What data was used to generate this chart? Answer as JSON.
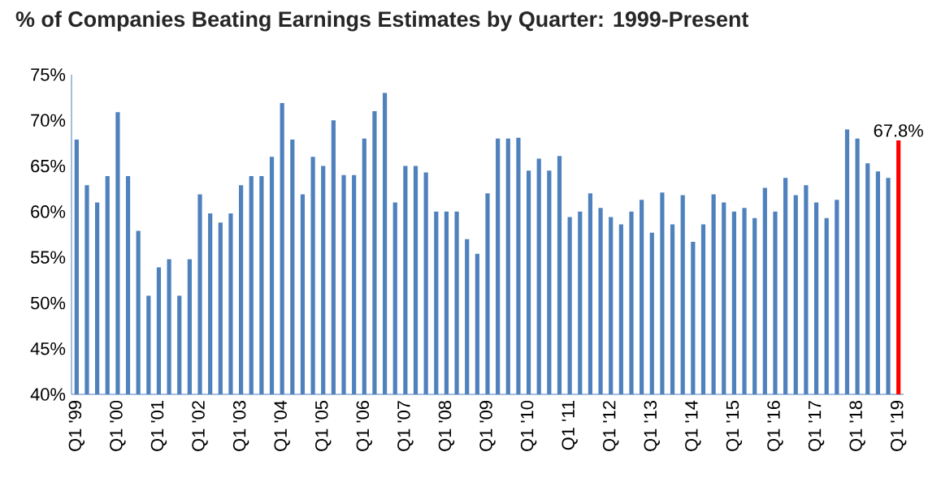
{
  "chart_data": {
    "type": "bar",
    "title": "% of Companies Beating Earnings Estimates by Quarter: 1999-Present",
    "categories": [
      "Q1 '99",
      null,
      null,
      null,
      "Q1 '00",
      null,
      null,
      null,
      "Q1 '01",
      null,
      null,
      null,
      "Q1 '02",
      null,
      null,
      null,
      "Q1 '03",
      null,
      null,
      null,
      "Q1 '04",
      null,
      null,
      null,
      "Q1 '05",
      null,
      null,
      null,
      "Q1 '06",
      null,
      null,
      null,
      "Q1 '07",
      null,
      null,
      null,
      "Q1 '08",
      null,
      null,
      null,
      "Q1 '09",
      null,
      null,
      null,
      "Q1 '10",
      null,
      null,
      null,
      "Q1 '11",
      null,
      null,
      null,
      "Q1 '12",
      null,
      null,
      null,
      "Q1 '13",
      null,
      null,
      null,
      "Q1 '14",
      null,
      null,
      null,
      "Q1 '15",
      null,
      null,
      null,
      "Q1 '16",
      null,
      null,
      null,
      "Q1 '17",
      null,
      null,
      null,
      "Q1 '18",
      null,
      null,
      null,
      "Q1 '19"
    ],
    "values": [
      67.9,
      62.9,
      61,
      63.9,
      70.9,
      63.9,
      57.9,
      50.8,
      53.9,
      54.8,
      50.8,
      54.8,
      61.9,
      59.8,
      58.8,
      59.8,
      62.9,
      63.9,
      63.9,
      66,
      71.9,
      67.9,
      61.9,
      66,
      65,
      70,
      64,
      64,
      68,
      71,
      73,
      61,
      65,
      65,
      64.3,
      60,
      60,
      60,
      57,
      55.4,
      62,
      68,
      68,
      68.1,
      64.5,
      65.8,
      64.5,
      66.1,
      59.4,
      60,
      62,
      60.4,
      59.4,
      58.6,
      60,
      61.3,
      57.7,
      62.1,
      58.6,
      61.8,
      56.7,
      58.6,
      61.9,
      61,
      60,
      60.4,
      59.3,
      62.6,
      60,
      63.7,
      61.8,
      62.9,
      61,
      59.3,
      61.3,
      69,
      68,
      65.3,
      64.4,
      63.7,
      67.8
    ],
    "colors": [
      "#4f81bd",
      "#4f81bd",
      "#4f81bd",
      "#4f81bd",
      "#4f81bd",
      "#4f81bd",
      "#4f81bd",
      "#4f81bd",
      "#4f81bd",
      "#4f81bd",
      "#4f81bd",
      "#4f81bd",
      "#4f81bd",
      "#4f81bd",
      "#4f81bd",
      "#4f81bd",
      "#4f81bd",
      "#4f81bd",
      "#4f81bd",
      "#4f81bd",
      "#4f81bd",
      "#4f81bd",
      "#4f81bd",
      "#4f81bd",
      "#4f81bd",
      "#4f81bd",
      "#4f81bd",
      "#4f81bd",
      "#4f81bd",
      "#4f81bd",
      "#4f81bd",
      "#4f81bd",
      "#4f81bd",
      "#4f81bd",
      "#4f81bd",
      "#4f81bd",
      "#4f81bd",
      "#4f81bd",
      "#4f81bd",
      "#4f81bd",
      "#4f81bd",
      "#4f81bd",
      "#4f81bd",
      "#4f81bd",
      "#4f81bd",
      "#4f81bd",
      "#4f81bd",
      "#4f81bd",
      "#4f81bd",
      "#4f81bd",
      "#4f81bd",
      "#4f81bd",
      "#4f81bd",
      "#4f81bd",
      "#4f81bd",
      "#4f81bd",
      "#4f81bd",
      "#4f81bd",
      "#4f81bd",
      "#4f81bd",
      "#4f81bd",
      "#4f81bd",
      "#4f81bd",
      "#4f81bd",
      "#4f81bd",
      "#4f81bd",
      "#4f81bd",
      "#4f81bd",
      "#4f81bd",
      "#4f81bd",
      "#4f81bd",
      "#4f81bd",
      "#4f81bd",
      "#4f81bd",
      "#4f81bd",
      "#4f81bd",
      "#4f81bd",
      "#4f81bd",
      "#4f81bd",
      "#4f81bd",
      "#ff0000"
    ],
    "value_labels": [
      null,
      null,
      null,
      null,
      null,
      null,
      null,
      null,
      null,
      null,
      null,
      null,
      null,
      null,
      null,
      null,
      null,
      null,
      null,
      null,
      null,
      null,
      null,
      null,
      null,
      null,
      null,
      null,
      null,
      null,
      null,
      null,
      null,
      null,
      null,
      null,
      null,
      null,
      null,
      null,
      null,
      null,
      null,
      null,
      null,
      null,
      null,
      null,
      null,
      null,
      null,
      null,
      null,
      null,
      null,
      null,
      null,
      null,
      null,
      null,
      null,
      null,
      null,
      null,
      null,
      null,
      null,
      null,
      null,
      null,
      null,
      null,
      null,
      null,
      null,
      null,
      null,
      null,
      null,
      null,
      "67.8%"
    ],
    "ylim": [
      40,
      75
    ],
    "yticks": [
      {
        "value": 40,
        "label": "40%"
      },
      {
        "value": 45,
        "label": "45%"
      },
      {
        "value": 50,
        "label": "50%"
      },
      {
        "value": 55,
        "label": "55%"
      },
      {
        "value": 60,
        "label": "60%"
      },
      {
        "value": 65,
        "label": "65%"
      },
      {
        "value": 70,
        "label": "70%"
      },
      {
        "value": 75,
        "label": "75%"
      }
    ],
    "grid": false
  }
}
